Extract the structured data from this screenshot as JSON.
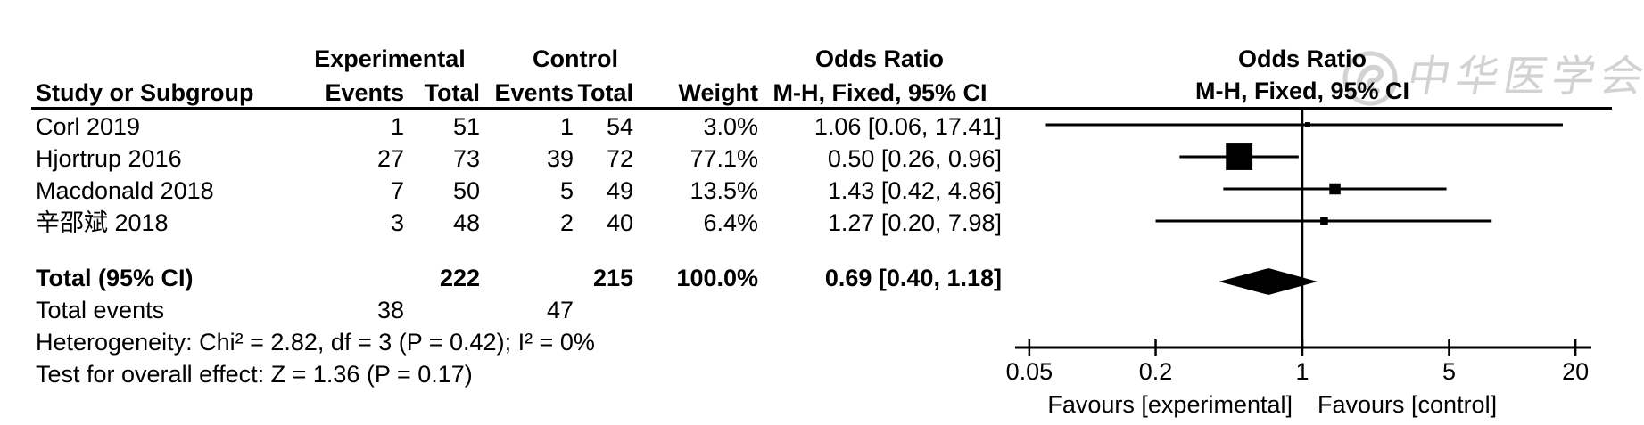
{
  "header": {
    "group_experimental": "Experimental",
    "group_control": "Control",
    "or_column_title": "Odds Ratio",
    "or_column_sub": "M-H, Fixed, 95% CI",
    "plot_title": "Odds Ratio",
    "plot_sub": "M-H, Fixed, 95% CI",
    "study_col": "Study or Subgroup",
    "events_col": "Events",
    "total_col": "Total",
    "weight_col": "Weight"
  },
  "chart_data": {
    "type": "forest_plot",
    "effect_measure": "Odds Ratio",
    "method": "M-H, Fixed, 95% CI",
    "x_scale": "log",
    "x_ticks": [
      0.05,
      0.2,
      1,
      5,
      20
    ],
    "x_tick_labels": [
      "0.05",
      "0.2",
      "1",
      "5",
      "20"
    ],
    "x_axis_left_label": "Favours [experimental]",
    "x_axis_right_label": "Favours [control]",
    "null_line_value": 1,
    "studies": [
      {
        "name": "Corl 2019",
        "events_exp": "1",
        "total_exp": "51",
        "events_ctl": "1",
        "total_ctl": "54",
        "weight": "3.0%",
        "weight_pct": 3.0,
        "or": 1.06,
        "ci_low": 0.06,
        "ci_high": 17.41,
        "or_ci": "1.06 [0.06, 17.41]"
      },
      {
        "name": "Hjortrup 2016",
        "events_exp": "27",
        "total_exp": "73",
        "events_ctl": "39",
        "total_ctl": "72",
        "weight": "77.1%",
        "weight_pct": 77.1,
        "or": 0.5,
        "ci_low": 0.26,
        "ci_high": 0.96,
        "or_ci": "0.50 [0.26, 0.96]"
      },
      {
        "name": "Macdonald 2018",
        "events_exp": "7",
        "total_exp": "50",
        "events_ctl": "5",
        "total_ctl": "49",
        "weight": "13.5%",
        "weight_pct": 13.5,
        "or": 1.43,
        "ci_low": 0.42,
        "ci_high": 4.86,
        "or_ci": "1.43 [0.42, 4.86]"
      },
      {
        "name": "辛邵斌 2018",
        "events_exp": "3",
        "total_exp": "48",
        "events_ctl": "2",
        "total_ctl": "40",
        "weight": "6.4%",
        "weight_pct": 6.4,
        "or": 1.27,
        "ci_low": 0.2,
        "ci_high": 7.98,
        "or_ci": "1.27 [0.20, 7.98]"
      }
    ],
    "total": {
      "label": "Total (95% CI)",
      "total_exp": "222",
      "total_ctl": "215",
      "weight": "100.0%",
      "or": 0.69,
      "ci_low": 0.4,
      "ci_high": 1.18,
      "or_ci": "0.69 [0.40, 1.18]"
    },
    "total_events": {
      "label": "Total events",
      "exp": "38",
      "ctl": "47"
    },
    "heterogeneity": "Heterogeneity: Chi² = 2.82, df = 3 (P = 0.42); I² = 0%",
    "overall_effect": "Test for overall effect: Z = 1.36 (P = 0.17)",
    "colors": {
      "ink": "#000000",
      "watermark": "#d2d2d2",
      "background": "#ffffff"
    }
  },
  "watermark": {
    "text": "中华医学会"
  }
}
